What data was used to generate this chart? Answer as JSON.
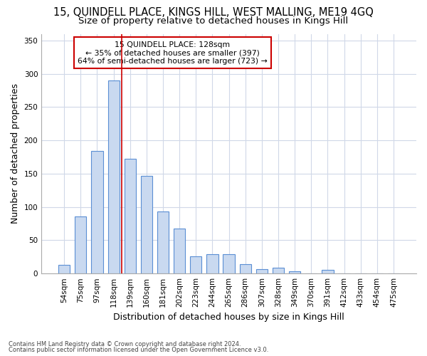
{
  "title": "15, QUINDELL PLACE, KINGS HILL, WEST MALLING, ME19 4GQ",
  "subtitle": "Size of property relative to detached houses in Kings Hill",
  "xlabel": "Distribution of detached houses by size in Kings Hill",
  "ylabel": "Number of detached properties",
  "categories": [
    "54sqm",
    "75sqm",
    "97sqm",
    "118sqm",
    "139sqm",
    "160sqm",
    "181sqm",
    "202sqm",
    "223sqm",
    "244sqm",
    "265sqm",
    "286sqm",
    "307sqm",
    "328sqm",
    "349sqm",
    "370sqm",
    "391sqm",
    "412sqm",
    "433sqm",
    "454sqm",
    "475sqm"
  ],
  "values": [
    13,
    86,
    184,
    290,
    172,
    147,
    93,
    68,
    26,
    29,
    29,
    14,
    7,
    9,
    3,
    0,
    6,
    0,
    0,
    0,
    0
  ],
  "bar_color": "#c9d9f0",
  "bar_edge_color": "#5b8fd4",
  "bar_width": 0.7,
  "property_line_x": 3.5,
  "annotation_line1": "15 QUINDELL PLACE: 128sqm",
  "annotation_line2": "← 35% of detached houses are smaller (397)",
  "annotation_line3": "64% of semi-detached houses are larger (723) →",
  "annotation_box_color": "#ffffff",
  "annotation_box_edge": "#cc0000",
  "vline_color": "#cc0000",
  "ylim": [
    0,
    360
  ],
  "yticks": [
    0,
    50,
    100,
    150,
    200,
    250,
    300,
    350
  ],
  "background_color": "#ffffff",
  "plot_bg_color": "#ffffff",
  "grid_color": "#d0d8e8",
  "footnote1": "Contains HM Land Registry data © Crown copyright and database right 2024.",
  "footnote2": "Contains public sector information licensed under the Open Government Licence v3.0.",
  "title_fontsize": 10.5,
  "subtitle_fontsize": 9.5,
  "axis_label_fontsize": 9,
  "tick_fontsize": 7.5
}
